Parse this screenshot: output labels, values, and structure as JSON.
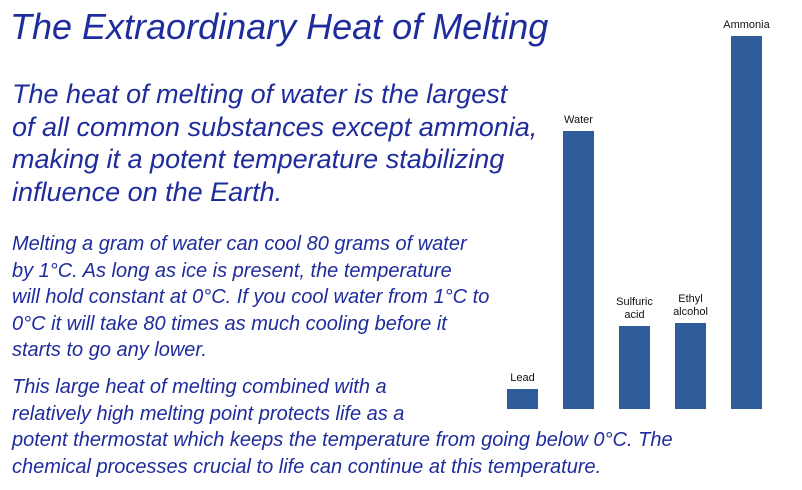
{
  "header": {
    "title": "The Extraordinary Heat of Melting"
  },
  "paragraphs": [
    [
      "The heat of melting of water is the largest",
      "of all common substances except ammonia,",
      "making it a potent temperature stabilizing",
      "influence on the Earth."
    ],
    [
      "Melting a gram of water can cool 80 grams of water",
      "by 1°C. As long as ice is present, the temperature",
      "will hold constant at 0°C. If you cool water from 1°C to",
      "0°C it will take 80 times as much cooling before it",
      "starts to go any lower."
    ],
    [
      "This large heat of melting combined with a",
      "relatively high melting point protects life as a",
      "potent thermostat which keeps the temperature from going below 0°C. The",
      "chemical processes crucial to life can continue at this temperature."
    ]
  ],
  "chart_data": {
    "type": "bar",
    "categories": [
      "Lead",
      "Water",
      "Sulfuric acid",
      "Ethyl alcohol",
      "Ammonia"
    ],
    "values": [
      20,
      278,
      83,
      86,
      373
    ],
    "color": "#2f5d9a"
  }
}
